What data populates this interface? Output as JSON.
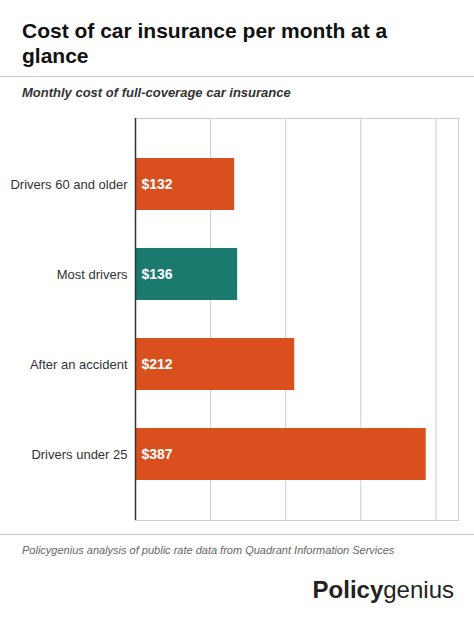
{
  "chart_data": {
    "type": "bar",
    "orientation": "horizontal",
    "title": "Cost of car insurance per month at a glance",
    "subtitle": "Monthly cost of full-coverage car insurance",
    "categories": [
      "Drivers under 25",
      "After an accident",
      "Most drivers",
      "Drivers 60 and older"
    ],
    "values": [
      387,
      212,
      136,
      132
    ],
    "value_labels": [
      "$387",
      "$212",
      "$136",
      "$132"
    ],
    "data_labels": true,
    "colors": [
      "#d94f1e",
      "#d94f1e",
      "#1a7a6e",
      "#d94f1e"
    ],
    "xlim": [
      0,
      430
    ],
    "xticks": [
      100,
      200,
      300,
      400
    ],
    "grid": true,
    "tick_labels": "y",
    "annotations": [
      "Policygenius analysis of public rate data from Quadrant Information Services",
      "Policy",
      "genius"
    ]
  }
}
